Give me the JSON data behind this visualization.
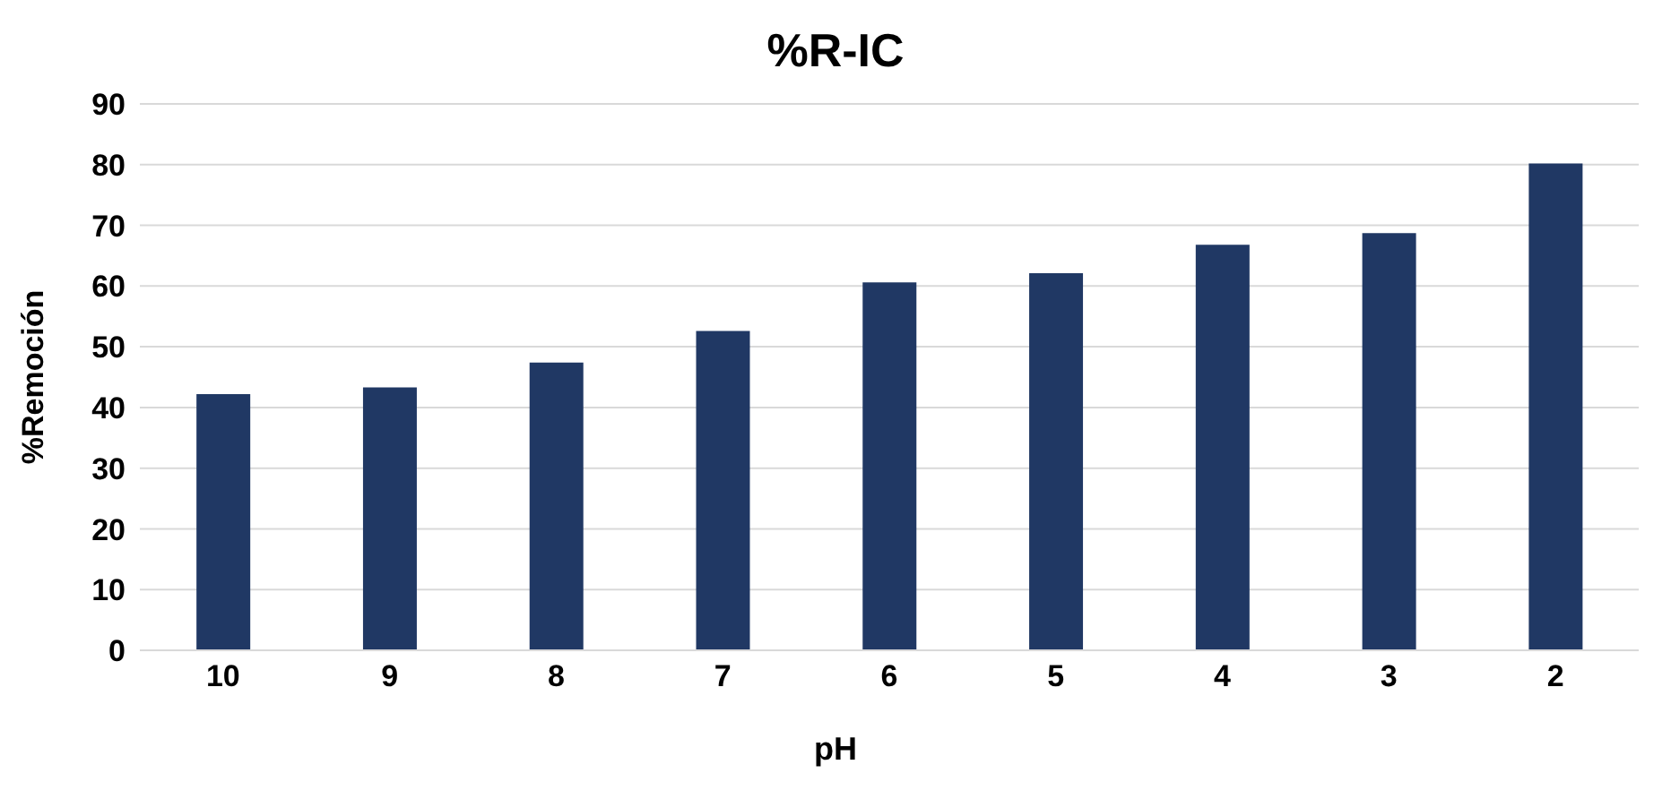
{
  "chart_data": {
    "type": "bar",
    "title": "%R-IC",
    "xlabel": "pH",
    "ylabel": "%Remoción",
    "categories": [
      "10",
      "9",
      "8",
      "7",
      "6",
      "5",
      "4",
      "3",
      "2"
    ],
    "values": [
      42.2,
      43.3,
      47.4,
      52.6,
      60.6,
      62.1,
      66.8,
      68.7,
      80.2
    ],
    "color": "#203864",
    "ylim": [
      0,
      90
    ],
    "yticks": [
      0,
      10,
      20,
      30,
      40,
      50,
      60,
      70,
      80,
      90
    ],
    "grid": "y"
  }
}
